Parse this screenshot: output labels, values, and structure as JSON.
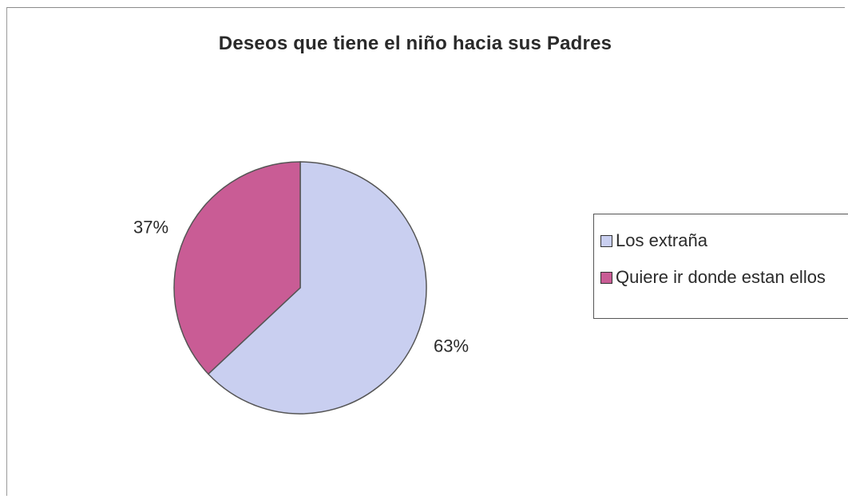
{
  "chart_data": {
    "type": "pie",
    "title": "Deseos que tiene el niño hacia sus Padres",
    "slices": [
      {
        "label": "Los extraña",
        "value": 63,
        "display": "63%",
        "color": "#c9cff0"
      },
      {
        "label": "Quiere ir donde estan ellos",
        "value": 37,
        "display": "37%",
        "color": "#c95c95"
      }
    ],
    "legend_position": "right"
  }
}
